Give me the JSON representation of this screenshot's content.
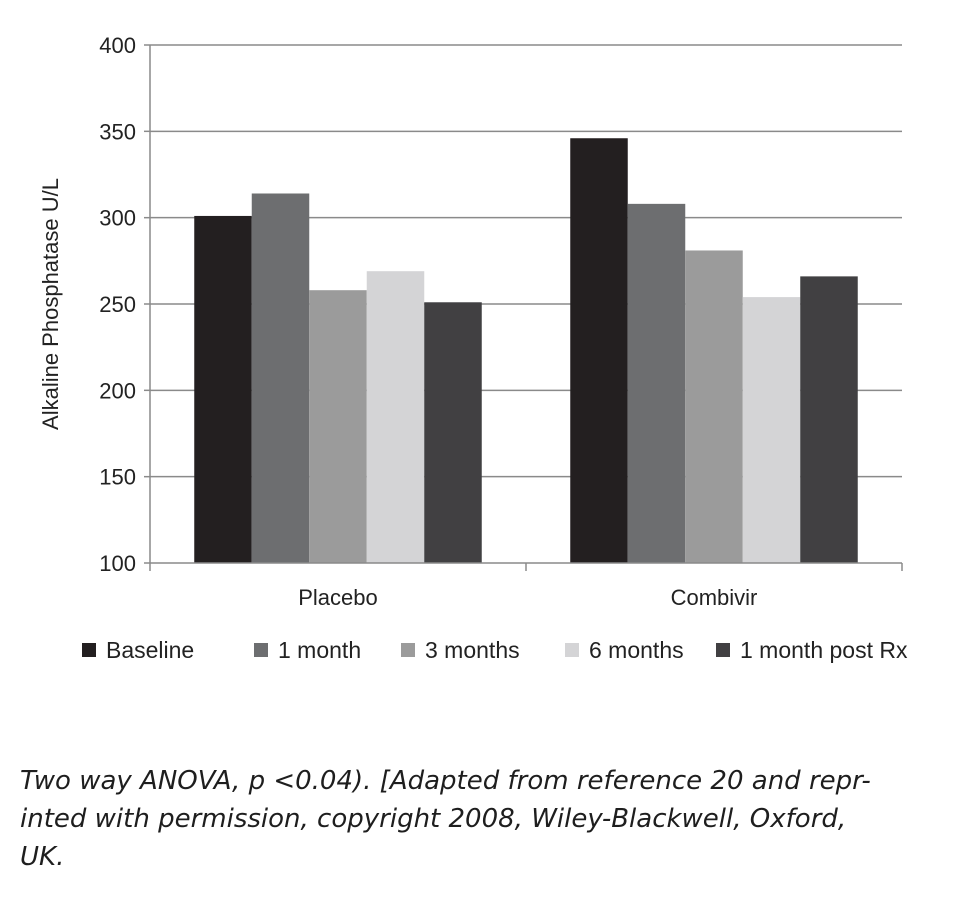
{
  "chart_data": {
    "type": "bar",
    "categories": [
      "Placebo",
      "Combivir"
    ],
    "series": [
      {
        "name": "Baseline",
        "values": [
          301,
          346
        ],
        "color": "#231f20"
      },
      {
        "name": "1 month",
        "values": [
          314,
          308
        ],
        "color": "#6d6e70"
      },
      {
        "name": "3 months",
        "values": [
          258,
          281
        ],
        "color": "#9b9b9b"
      },
      {
        "name": "6 months",
        "values": [
          269,
          254
        ],
        "color": "#d4d4d6"
      },
      {
        "name": "1 month post Rx",
        "values": [
          251,
          266
        ],
        "color": "#414042"
      }
    ],
    "title": "",
    "xlabel": "",
    "ylabel": "Alkaline Phosphatase U/L",
    "ylim": [
      100,
      400
    ],
    "yticks": [
      100,
      150,
      200,
      250,
      300,
      350,
      400
    ],
    "grid": true,
    "legend": "bottom"
  },
  "caption": {
    "lines": [
      "Two way ANOVA, p <0.04). [Adapted from reference 20 and repr-",
      "inted with permission, copyright 2008, Wiley-Blackwell, Oxford,",
      "UK."
    ]
  }
}
